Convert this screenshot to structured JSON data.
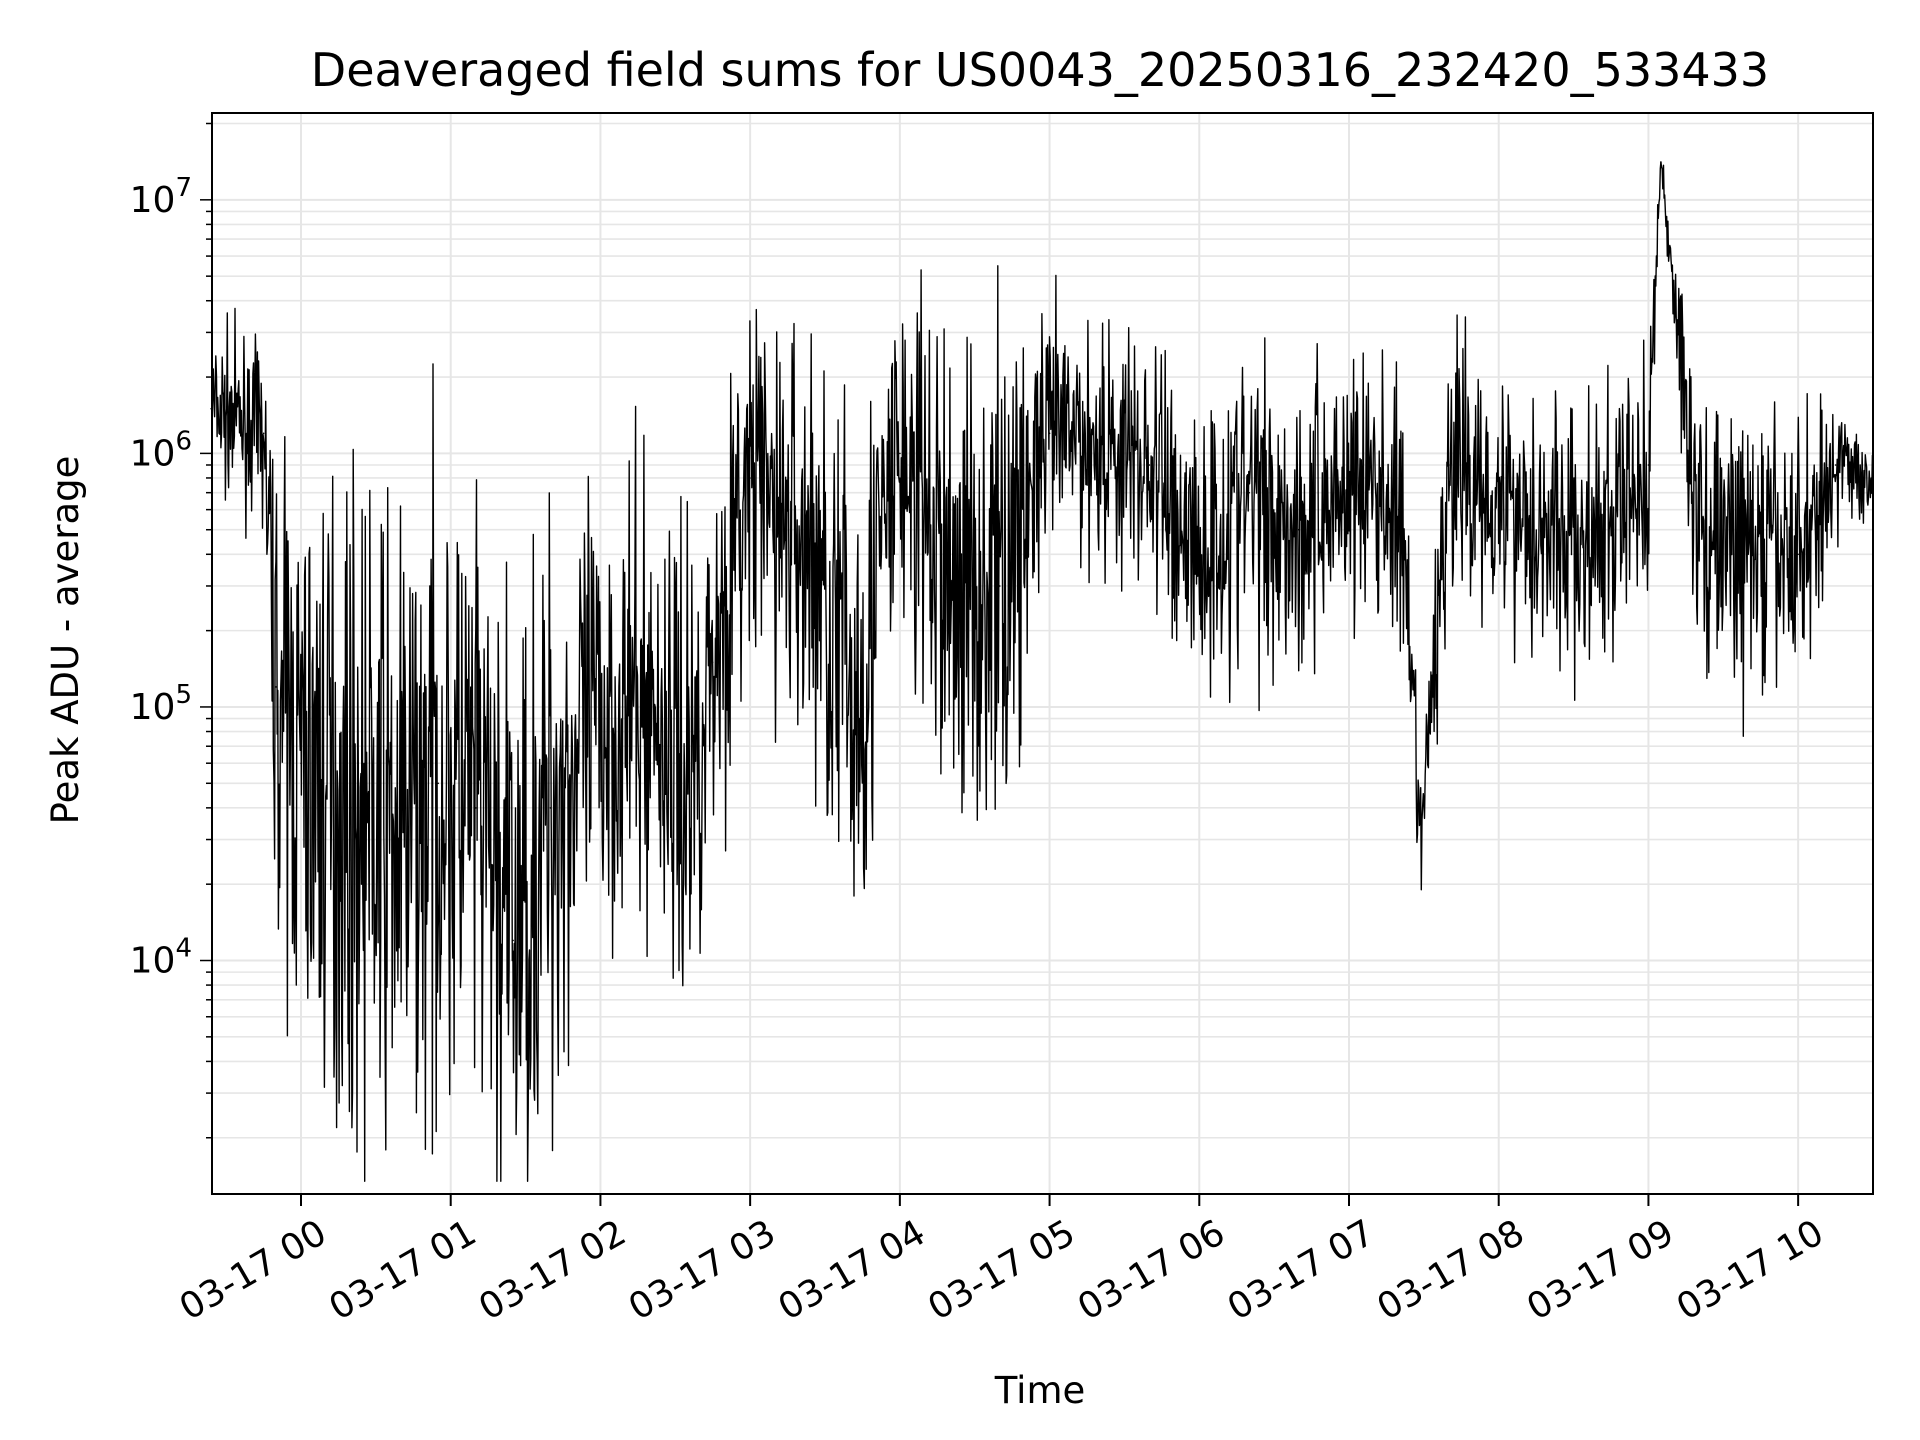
{
  "chart_data": {
    "type": "line",
    "title": "Deaveraged field sums for US0043_20250316_232420_533433",
    "xlabel": "Time",
    "ylabel": "Peak ADU - average",
    "yscale": "log",
    "ylim": [
      1200,
      22000000
    ],
    "xlim": [
      "2025-03-16 23:24:20",
      "2025-03-17 10:30:00"
    ],
    "x_ticks": [
      "03-17 00",
      "03-17 01",
      "03-17 02",
      "03-17 03",
      "03-17 04",
      "03-17 05",
      "03-17 06",
      "03-17 07",
      "03-17 08",
      "03-17 09",
      "03-17 10"
    ],
    "x_tick_times": [
      "2025-03-17 00:00",
      "2025-03-17 01:00",
      "2025-03-17 02:00",
      "2025-03-17 03:00",
      "2025-03-17 04:00",
      "2025-03-17 05:00",
      "2025-03-17 06:00",
      "2025-03-17 07:00",
      "2025-03-17 08:00",
      "2025-03-17 09:00",
      "2025-03-17 10:00"
    ],
    "y_ticks": [
      10000,
      100000,
      1000000,
      10000000
    ],
    "y_tick_labels": [
      "10^4",
      "10^5",
      "10^6",
      "10^7"
    ],
    "grid": true,
    "line_color": "#000000",
    "grid_color": "#e6e6e6",
    "series": [
      {
        "x": [
          "2025-03-16 23:24",
          "2025-03-16 23:45",
          "2025-03-16 23:50",
          "2025-03-17 00:00",
          "2025-03-17 00:20",
          "2025-03-17 00:40",
          "2025-03-17 00:55",
          "2025-03-17 01:10",
          "2025-03-17 01:25",
          "2025-03-17 01:40",
          "2025-03-17 02:00",
          "2025-03-17 02:20",
          "2025-03-17 02:35",
          "2025-03-17 02:45",
          "2025-03-17 03:00",
          "2025-03-17 03:25",
          "2025-03-17 03:42",
          "2025-03-17 04:00",
          "2025-03-17 04:20",
          "2025-03-17 04:40",
          "2025-03-17 05:00",
          "2025-03-17 05:20",
          "2025-03-17 05:40",
          "2025-03-17 06:00",
          "2025-03-17 06:20",
          "2025-03-17 06:40",
          "2025-03-17 07:00",
          "2025-03-17 07:20",
          "2025-03-17 07:29",
          "2025-03-17 07:40",
          "2025-03-17 08:00",
          "2025-03-17 08:20",
          "2025-03-17 08:40",
          "2025-03-17 09:00",
          "2025-03-17 09:05",
          "2025-03-17 09:20",
          "2025-03-17 09:40",
          "2025-03-17 10:00",
          "2025-03-17 10:15",
          "2025-03-17 10:30"
        ],
        "values": [
          1500000,
          1200000,
          120000,
          60000,
          40000,
          30000,
          50000,
          40000,
          12000,
          40000,
          90000,
          100000,
          50000,
          150000,
          800000,
          400000,
          100000,
          1000000,
          300000,
          300000,
          1200000,
          1100000,
          900000,
          400000,
          700000,
          500000,
          800000,
          600000,
          30000,
          900000,
          700000,
          500000,
          400000,
          900000,
          14000000,
          500000,
          400000,
          400000,
          900000,
          800000
        ],
        "noise_dex": [
          0.25,
          0.25,
          0.7,
          0.9,
          1.0,
          1.0,
          1.0,
          1.0,
          1.0,
          1.0,
          0.7,
          0.7,
          0.8,
          0.6,
          0.6,
          0.7,
          0.9,
          0.6,
          0.8,
          0.8,
          0.4,
          0.4,
          0.45,
          0.5,
          0.5,
          0.5,
          0.45,
          0.45,
          0.2,
          0.45,
          0.4,
          0.45,
          0.45,
          0.45,
          0.05,
          0.45,
          0.45,
          0.45,
          0.2,
          0.15
        ]
      }
    ]
  }
}
